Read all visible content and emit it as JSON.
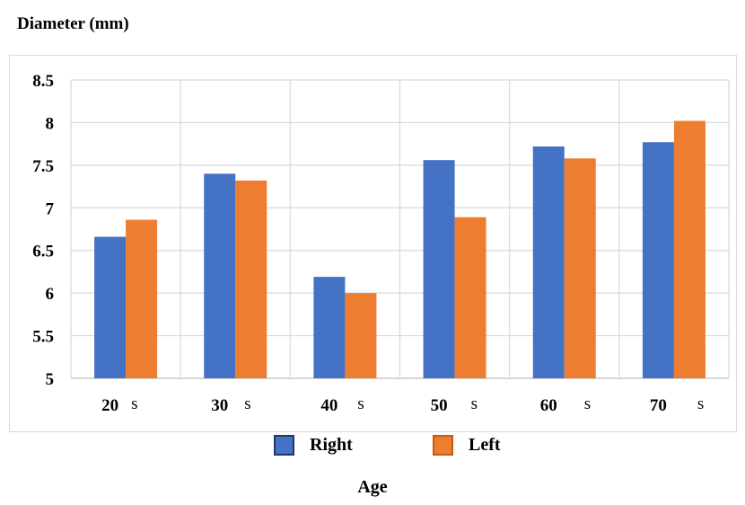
{
  "chart_data": {
    "type": "bar",
    "ylabel": "Diameter (mm)",
    "xlabel": "Age",
    "categories": [
      "20",
      "30",
      "40",
      "50",
      "60",
      "70"
    ],
    "category_suffix": "s",
    "series": [
      {
        "name": "Right",
        "color": "#4472c4",
        "values": [
          6.66,
          7.4,
          6.19,
          7.56,
          7.72,
          7.77
        ]
      },
      {
        "name": "Left",
        "color": "#ed7d31",
        "values": [
          6.86,
          7.32,
          6.0,
          6.89,
          7.58,
          8.02
        ]
      }
    ],
    "ylim": [
      5,
      8.5
    ],
    "yticks": [
      "5",
      "5.5",
      "6",
      "6.5",
      "7",
      "7.5",
      "8",
      "8.5"
    ],
    "grid": true,
    "legend_position": "bottom"
  }
}
